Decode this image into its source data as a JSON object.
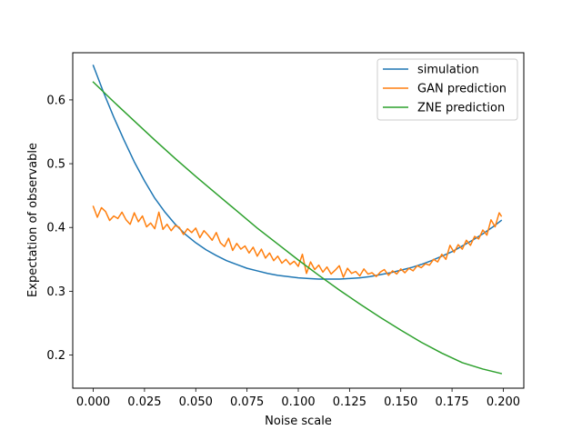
{
  "chart_data": {
    "type": "line",
    "title": "",
    "xlabel": "Noise scale",
    "ylabel": "Expectation of observable",
    "xlim": [
      -0.01,
      0.21
    ],
    "ylim": [
      0.148,
      0.674
    ],
    "xticks": [
      0.0,
      0.025,
      0.05,
      0.075,
      0.1,
      0.125,
      0.15,
      0.175,
      0.2
    ],
    "xtick_labels": [
      "0.000",
      "0.025",
      "0.050",
      "0.075",
      "0.100",
      "0.125",
      "0.150",
      "0.175",
      "0.200"
    ],
    "yticks": [
      0.2,
      0.3,
      0.4,
      0.5,
      0.6
    ],
    "ytick_labels": [
      "0.2",
      "0.3",
      "0.4",
      "0.5",
      "0.6"
    ],
    "grid": false,
    "legend_position": "top-right",
    "series": [
      {
        "name": "simulation",
        "color": "#1f77b4",
        "x": [
          0.0,
          0.005,
          0.01,
          0.015,
          0.02,
          0.025,
          0.03,
          0.035,
          0.04,
          0.045,
          0.05,
          0.055,
          0.06,
          0.065,
          0.07,
          0.075,
          0.08,
          0.085,
          0.09,
          0.095,
          0.1,
          0.105,
          0.11,
          0.115,
          0.12,
          0.125,
          0.13,
          0.135,
          0.14,
          0.145,
          0.15,
          0.155,
          0.16,
          0.165,
          0.17,
          0.175,
          0.18,
          0.185,
          0.19,
          0.195,
          0.199
        ],
        "y": [
          0.654,
          0.612,
          0.573,
          0.537,
          0.503,
          0.473,
          0.446,
          0.424,
          0.405,
          0.389,
          0.376,
          0.365,
          0.356,
          0.348,
          0.342,
          0.336,
          0.332,
          0.328,
          0.325,
          0.323,
          0.321,
          0.32,
          0.319,
          0.319,
          0.319,
          0.32,
          0.321,
          0.323,
          0.326,
          0.329,
          0.333,
          0.337,
          0.342,
          0.348,
          0.355,
          0.362,
          0.371,
          0.38,
          0.39,
          0.401,
          0.411
        ]
      },
      {
        "name": "GAN prediction",
        "color": "#ff7f0e",
        "x": [
          0.0,
          0.002,
          0.004,
          0.006,
          0.008,
          0.01,
          0.012,
          0.014,
          0.016,
          0.018,
          0.02,
          0.022,
          0.024,
          0.026,
          0.028,
          0.03,
          0.032,
          0.034,
          0.036,
          0.038,
          0.04,
          0.042,
          0.044,
          0.046,
          0.048,
          0.05,
          0.052,
          0.054,
          0.056,
          0.058,
          0.06,
          0.062,
          0.064,
          0.066,
          0.068,
          0.07,
          0.072,
          0.074,
          0.076,
          0.078,
          0.08,
          0.082,
          0.084,
          0.086,
          0.088,
          0.09,
          0.092,
          0.094,
          0.096,
          0.098,
          0.1,
          0.102,
          0.104,
          0.106,
          0.108,
          0.11,
          0.112,
          0.114,
          0.116,
          0.118,
          0.12,
          0.122,
          0.124,
          0.126,
          0.128,
          0.13,
          0.132,
          0.134,
          0.136,
          0.138,
          0.14,
          0.142,
          0.144,
          0.146,
          0.148,
          0.15,
          0.152,
          0.154,
          0.156,
          0.158,
          0.16,
          0.162,
          0.164,
          0.166,
          0.168,
          0.17,
          0.172,
          0.174,
          0.176,
          0.178,
          0.18,
          0.182,
          0.184,
          0.186,
          0.188,
          0.19,
          0.192,
          0.194,
          0.196,
          0.198,
          0.199
        ],
        "y": [
          0.433,
          0.416,
          0.431,
          0.425,
          0.411,
          0.418,
          0.414,
          0.424,
          0.412,
          0.405,
          0.423,
          0.409,
          0.418,
          0.401,
          0.407,
          0.398,
          0.424,
          0.397,
          0.405,
          0.395,
          0.403,
          0.4,
          0.389,
          0.398,
          0.392,
          0.399,
          0.384,
          0.395,
          0.388,
          0.38,
          0.392,
          0.376,
          0.37,
          0.383,
          0.364,
          0.375,
          0.366,
          0.371,
          0.36,
          0.369,
          0.355,
          0.366,
          0.352,
          0.36,
          0.348,
          0.355,
          0.344,
          0.35,
          0.342,
          0.347,
          0.339,
          0.358,
          0.328,
          0.346,
          0.334,
          0.341,
          0.33,
          0.338,
          0.327,
          0.333,
          0.34,
          0.322,
          0.336,
          0.328,
          0.331,
          0.324,
          0.335,
          0.327,
          0.329,
          0.323,
          0.33,
          0.334,
          0.325,
          0.332,
          0.327,
          0.335,
          0.329,
          0.336,
          0.332,
          0.34,
          0.337,
          0.343,
          0.341,
          0.35,
          0.346,
          0.358,
          0.35,
          0.372,
          0.361,
          0.373,
          0.366,
          0.38,
          0.372,
          0.386,
          0.382,
          0.396,
          0.388,
          0.412,
          0.401,
          0.423,
          0.418
        ]
      },
      {
        "name": "ZNE prediction",
        "color": "#2ca02c",
        "x": [
          0.0,
          0.01,
          0.02,
          0.03,
          0.04,
          0.05,
          0.06,
          0.07,
          0.08,
          0.09,
          0.1,
          0.11,
          0.12,
          0.13,
          0.14,
          0.15,
          0.16,
          0.17,
          0.18,
          0.19,
          0.199
        ],
        "y": [
          0.628,
          0.597,
          0.567,
          0.537,
          0.508,
          0.48,
          0.453,
          0.426,
          0.399,
          0.374,
          0.349,
          0.325,
          0.302,
          0.28,
          0.259,
          0.239,
          0.22,
          0.203,
          0.188,
          0.178,
          0.171
        ]
      }
    ]
  }
}
